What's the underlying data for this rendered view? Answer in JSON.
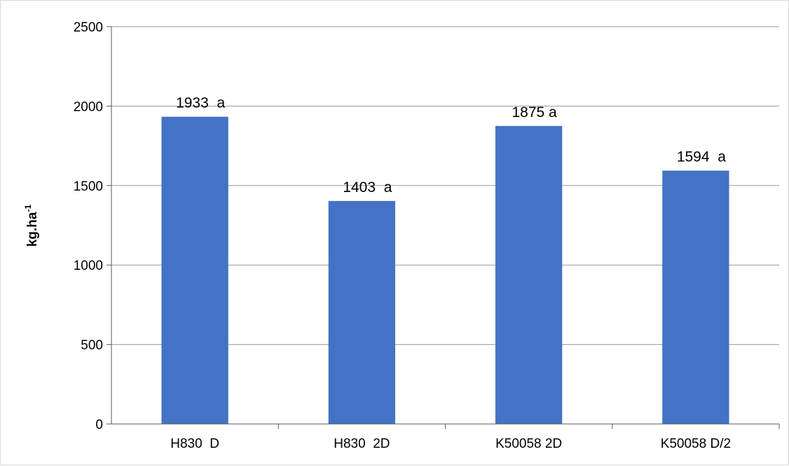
{
  "chart_data": {
    "type": "bar",
    "title": "",
    "xlabel": "",
    "ylabel": "kg.ha",
    "ylabel_superscript": "-1",
    "categories": [
      "H830  D",
      "H830  2D",
      "K50058 2D",
      "K50058 D/2"
    ],
    "values": [
      1933,
      1403,
      1875,
      1594
    ],
    "data_labels": [
      "1933  a",
      "1403  a",
      "1875 a",
      "1594  a"
    ],
    "ylim": [
      0,
      2500
    ],
    "yticks": [
      0,
      500,
      1000,
      1500,
      2000,
      2500
    ],
    "ytick_labels": [
      "0",
      "500",
      "1000",
      "1500",
      "2000",
      "2500"
    ],
    "grid": true,
    "legend": "none",
    "bar_color": "#4472C4",
    "grid_color": "#999999"
  }
}
